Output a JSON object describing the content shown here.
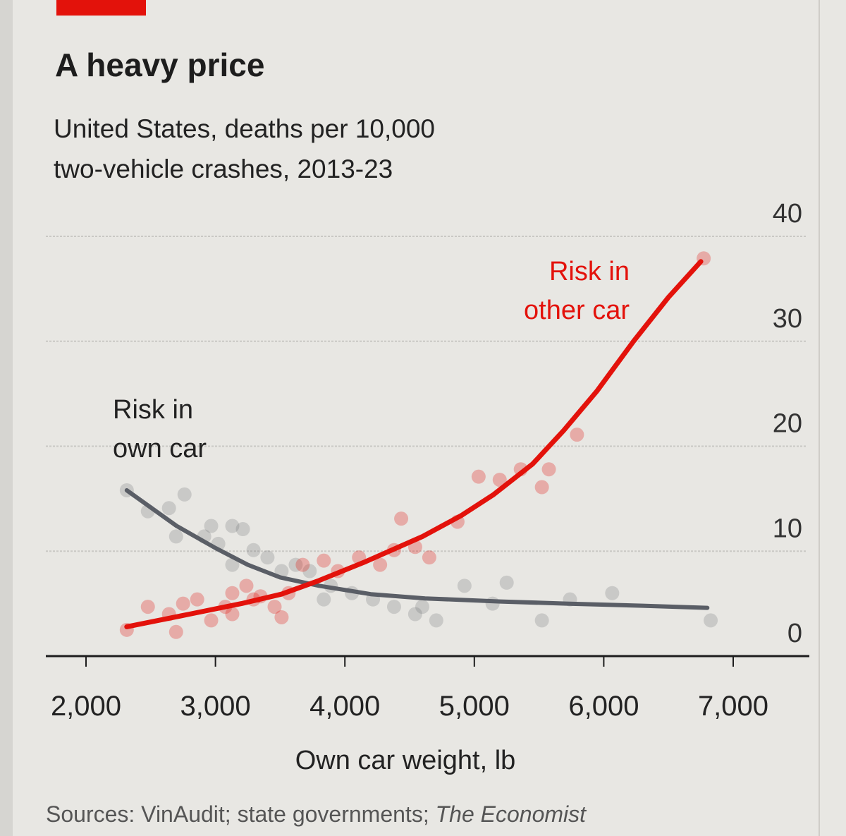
{
  "chart_data": {
    "type": "scatter",
    "title": "A heavy price",
    "subtitle_lines": [
      "United States, deaths per 10,000",
      "two-vehicle crashes, 2013-23"
    ],
    "xlabel": "Own car weight, lb",
    "ylabel": "",
    "xlim": [
      2000,
      7000
    ],
    "ylim": [
      0,
      40
    ],
    "x_ticks": [
      2000,
      3000,
      4000,
      5000,
      6000,
      7000
    ],
    "x_tick_labels": [
      "2,000",
      "3,000",
      "4,000",
      "5,000",
      "6,000",
      "7,000"
    ],
    "y_ticks": [
      0,
      10,
      20,
      30,
      40
    ],
    "y_tick_labels": [
      "0",
      "10",
      "20",
      "30",
      "40"
    ],
    "y_axis_side": "right",
    "grid": true,
    "source_prefix": "Sources: VinAudit; state governments; ",
    "source_italic": "The Economist",
    "accent_bar_color": "#e3120b",
    "series": [
      {
        "name": "Risk in own car",
        "label_lines": [
          "Risk in",
          "own car"
        ],
        "color": "#5a5e66",
        "curve": [
          [
            2315,
            15.8
          ],
          [
            2700,
            12.4
          ],
          [
            3000,
            10.3
          ],
          [
            3250,
            8.7
          ],
          [
            3500,
            7.5
          ],
          [
            3800,
            6.7
          ],
          [
            4200,
            5.9
          ],
          [
            4620,
            5.5
          ],
          [
            5200,
            5.2
          ],
          [
            5710,
            5.0
          ],
          [
            6300,
            4.8
          ],
          [
            6800,
            4.6
          ]
        ],
        "points": [
          [
            2315,
            15.8
          ],
          [
            2761,
            15.4
          ],
          [
            2478,
            13.8
          ],
          [
            2641,
            14.1
          ],
          [
            2967,
            12.4
          ],
          [
            3130,
            12.4
          ],
          [
            3212,
            12.1
          ],
          [
            2913,
            11.4
          ],
          [
            3022,
            10.7
          ],
          [
            3294,
            10.1
          ],
          [
            3402,
            9.4
          ],
          [
            3130,
            8.7
          ],
          [
            2696,
            11.4
          ],
          [
            3511,
            8.1
          ],
          [
            3620,
            8.7
          ],
          [
            3728,
            8.1
          ],
          [
            3891,
            6.7
          ],
          [
            4054,
            6.0
          ],
          [
            4217,
            5.4
          ],
          [
            4380,
            4.7
          ],
          [
            4543,
            4.0
          ],
          [
            4706,
            3.4
          ],
          [
            4924,
            6.7
          ],
          [
            5250,
            7.0
          ],
          [
            5141,
            5.0
          ],
          [
            5522,
            3.4
          ],
          [
            5739,
            5.4
          ],
          [
            6065,
            6.0
          ],
          [
            6826,
            3.4
          ],
          [
            4598,
            4.7
          ],
          [
            3837,
            5.4
          ]
        ]
      },
      {
        "name": "Risk in other car",
        "label_lines": [
          "Risk in",
          "other car"
        ],
        "color": "#e3120b",
        "curve": [
          [
            2315,
            2.8
          ],
          [
            2800,
            4.0
          ],
          [
            3200,
            5.0
          ],
          [
            3510,
            5.9
          ],
          [
            3800,
            7.2
          ],
          [
            4160,
            9.0
          ],
          [
            4600,
            11.4
          ],
          [
            4900,
            13.4
          ],
          [
            5150,
            15.4
          ],
          [
            5450,
            18.3
          ],
          [
            5690,
            21.5
          ],
          [
            5950,
            25.3
          ],
          [
            6230,
            30.0
          ],
          [
            6500,
            34.2
          ],
          [
            6750,
            37.6
          ]
        ],
        "points": [
          [
            2315,
            2.5
          ],
          [
            2478,
            4.7
          ],
          [
            2641,
            4.0
          ],
          [
            2750,
            5.0
          ],
          [
            2859,
            5.4
          ],
          [
            2967,
            3.4
          ],
          [
            2696,
            2.3
          ],
          [
            3076,
            4.7
          ],
          [
            3130,
            6.0
          ],
          [
            3239,
            6.7
          ],
          [
            3348,
            5.7
          ],
          [
            3457,
            4.7
          ],
          [
            3511,
            3.7
          ],
          [
            3565,
            6.0
          ],
          [
            3674,
            8.7
          ],
          [
            3837,
            9.1
          ],
          [
            3946,
            8.1
          ],
          [
            4109,
            9.4
          ],
          [
            4272,
            8.7
          ],
          [
            4435,
            13.1
          ],
          [
            4543,
            10.4
          ],
          [
            4652,
            9.4
          ],
          [
            4380,
            10.1
          ],
          [
            4870,
            12.8
          ],
          [
            5033,
            17.1
          ],
          [
            5196,
            16.8
          ],
          [
            5359,
            17.8
          ],
          [
            5522,
            16.1
          ],
          [
            5576,
            17.8
          ],
          [
            5793,
            21.1
          ],
          [
            6772,
            37.9
          ],
          [
            3130,
            4.0
          ],
          [
            3294,
            5.4
          ]
        ]
      }
    ]
  }
}
